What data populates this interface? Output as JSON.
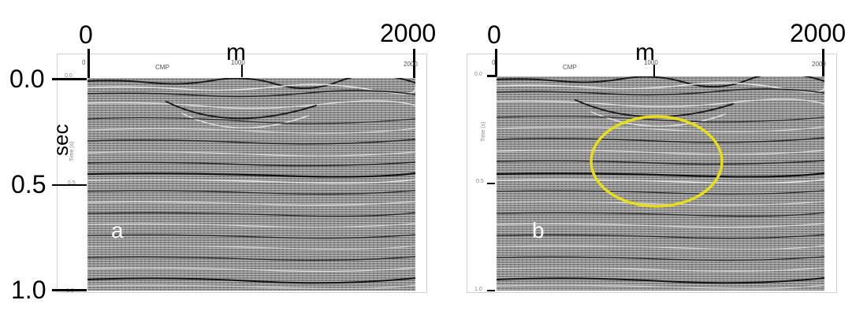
{
  "panel_a": {
    "top_left_label": "0",
    "top_right_label": "2000",
    "unit_label": "m",
    "small_top": {
      "left": "0",
      "mid_text": "CMP",
      "mid_value": "1000",
      "right": "2000"
    },
    "small_y": {
      "top": "0.0",
      "label": "Time (s)",
      "mid": "0.5",
      "bottom": "1.0"
    },
    "y_big_labels": {
      "top": "0.0",
      "mid": "0.5",
      "bottom": "1.0"
    },
    "y_unit": "sec",
    "letter": "a"
  },
  "panel_b": {
    "top_left_label": "0",
    "top_right_label": "2000",
    "unit_label": "m",
    "small_top": {
      "left": "0",
      "mid_text": "CMP",
      "mid_value": "1000",
      "right": "2000"
    },
    "small_y": {
      "top": "0.0",
      "label": "Time (s)",
      "mid": "0.5",
      "bottom": "1.0"
    },
    "letter": "b",
    "highlight_color": "#e6de1a"
  }
}
